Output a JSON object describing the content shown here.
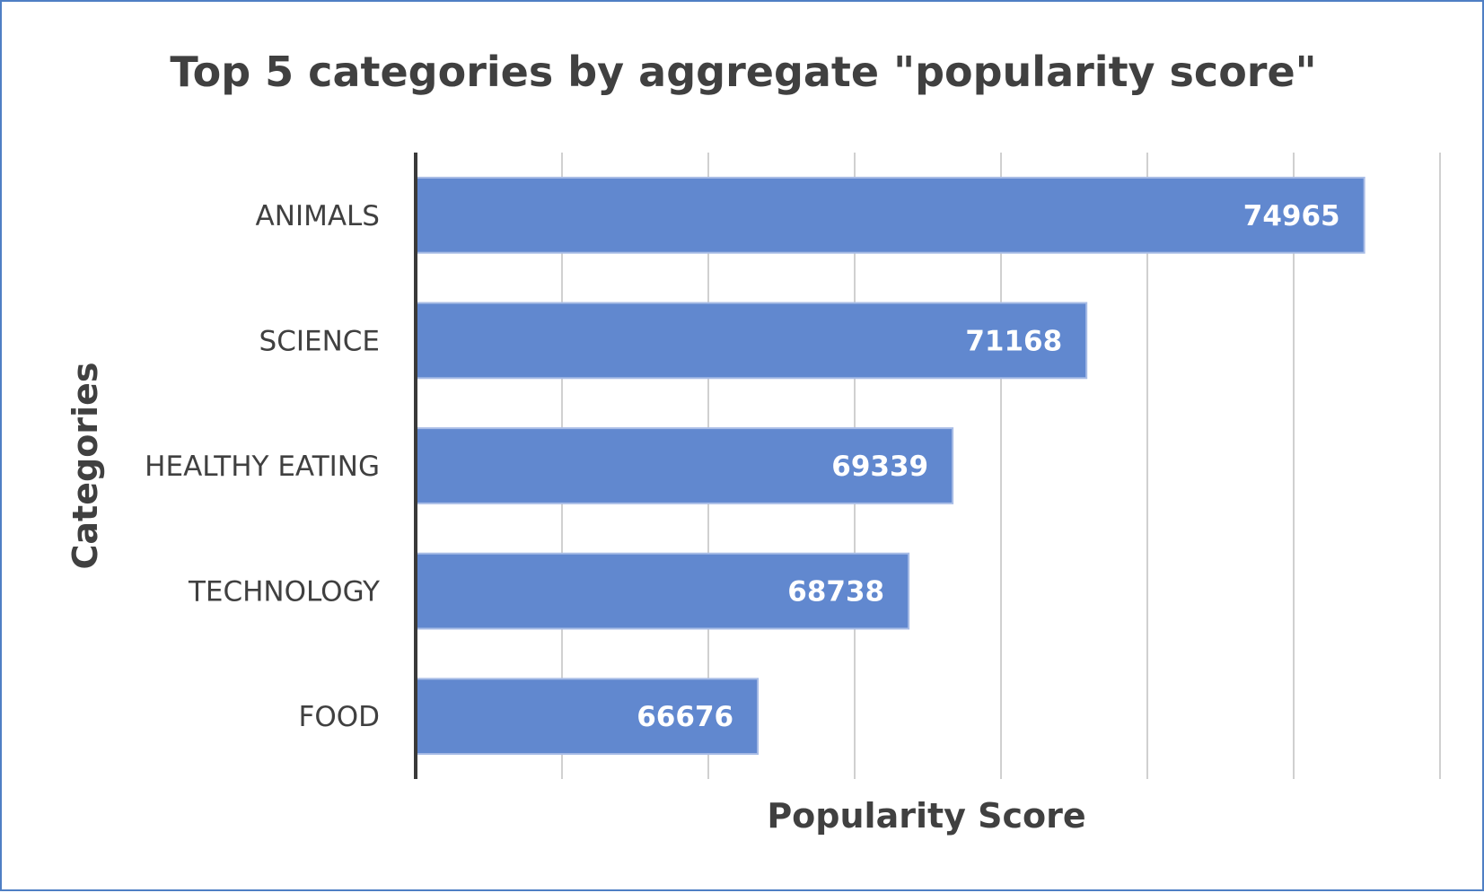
{
  "chart_data": {
    "type": "bar",
    "orientation": "horizontal",
    "title": "Top 5 categories by aggregate \"popularity  score\"",
    "xlabel": "Popularity Score",
    "ylabel": "Categories",
    "categories": [
      "ANIMALS",
      "SCIENCE",
      "HEALTHY EATING",
      "TECHNOLOGY",
      "FOOD"
    ],
    "values": [
      74965,
      71168,
      69339,
      68738,
      66676
    ],
    "xlim": [
      62000,
      76000
    ],
    "x_grid_step": 2000,
    "grid": true,
    "legend": "none",
    "bar_color": "#6188cf",
    "data_labels": true
  }
}
